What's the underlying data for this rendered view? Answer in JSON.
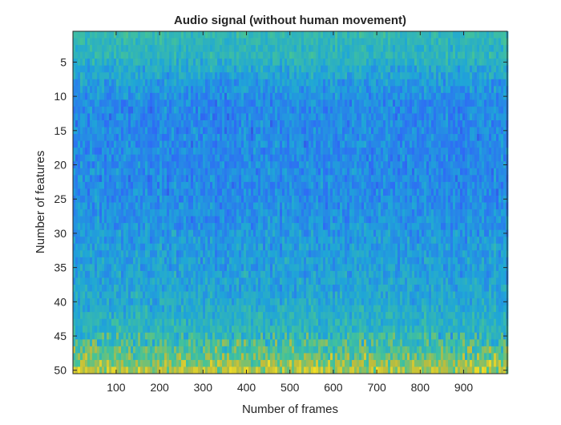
{
  "chart_data": {
    "type": "heatmap",
    "title": "Audio signal (without human movement)",
    "xlabel": "Number of frames",
    "ylabel": "Number of features",
    "xlim": [
      1,
      1000
    ],
    "ylim": [
      1,
      50
    ],
    "y_direction": "reverse",
    "x_ticks": [
      100,
      200,
      300,
      400,
      500,
      600,
      700,
      800,
      900
    ],
    "y_ticks": [
      5,
      10,
      15,
      20,
      25,
      30,
      35,
      40,
      45,
      50
    ],
    "colormap": "parula",
    "colors": {
      "low": "#3e26a8",
      "mid_low": "#2e6cf5",
      "mid": "#1fa6d7",
      "mid_high": "#44c398",
      "high": "#f9e324"
    },
    "feature_profile": {
      "features": [
        1,
        2,
        3,
        4,
        5,
        6,
        7,
        8,
        9,
        10,
        11,
        12,
        13,
        14,
        15,
        16,
        17,
        18,
        19,
        20,
        21,
        22,
        23,
        24,
        25,
        26,
        27,
        28,
        29,
        30,
        31,
        32,
        33,
        34,
        35,
        36,
        37,
        38,
        39,
        40,
        41,
        42,
        43,
        44,
        45,
        46,
        47,
        48,
        49,
        50
      ],
      "mean_level": [
        0.52,
        0.5,
        0.48,
        0.5,
        0.46,
        0.42,
        0.4,
        0.36,
        0.34,
        0.32,
        0.3,
        0.3,
        0.3,
        0.3,
        0.3,
        0.3,
        0.3,
        0.3,
        0.3,
        0.3,
        0.3,
        0.3,
        0.3,
        0.3,
        0.31,
        0.32,
        0.32,
        0.33,
        0.34,
        0.35,
        0.36,
        0.37,
        0.37,
        0.38,
        0.38,
        0.39,
        0.4,
        0.4,
        0.41,
        0.42,
        0.44,
        0.46,
        0.47,
        0.49,
        0.52,
        0.56,
        0.6,
        0.66,
        0.72,
        0.78
      ]
    }
  }
}
